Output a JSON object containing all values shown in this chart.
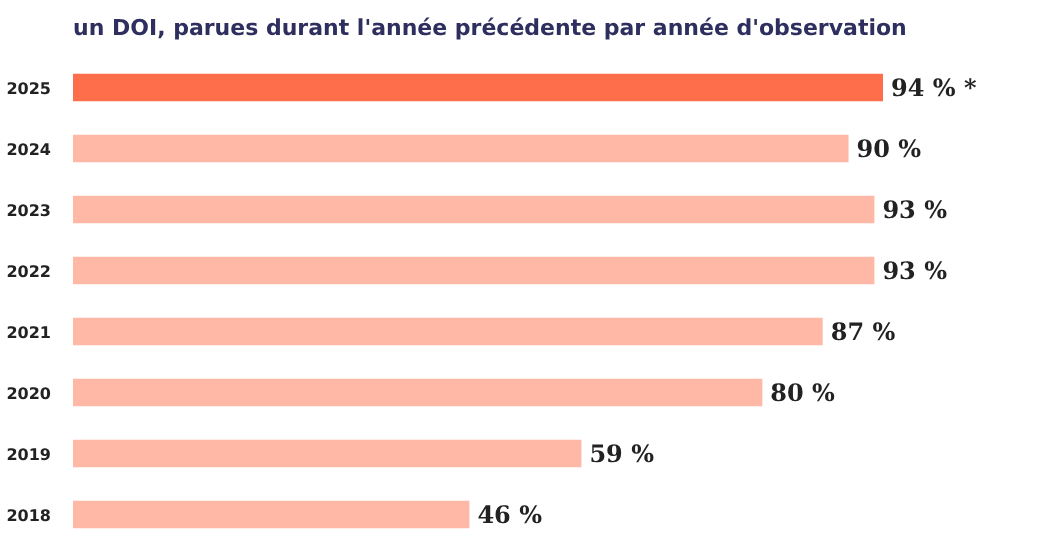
{
  "chart_data": {
    "type": "bar",
    "orientation": "horizontal",
    "title": "un DOI, parues durant l'année précédente par année d'observation",
    "categories": [
      "2025",
      "2024",
      "2023",
      "2022",
      "2021",
      "2020",
      "2019",
      "2018"
    ],
    "values": [
      94,
      90,
      93,
      93,
      87,
      80,
      59,
      46
    ],
    "colors": [
      "#ff6e4a",
      "#ffb8a6",
      "#ffb8a6",
      "#ffb8a6",
      "#ffb8a6",
      "#ffb8a6",
      "#ffb8a6",
      "#ffb8a6"
    ],
    "value_labels": [
      "94 % *",
      "90 %",
      "93 %",
      "93 %",
      "87 %",
      "80 %",
      "59 %",
      "46 %"
    ],
    "grid": false
  }
}
